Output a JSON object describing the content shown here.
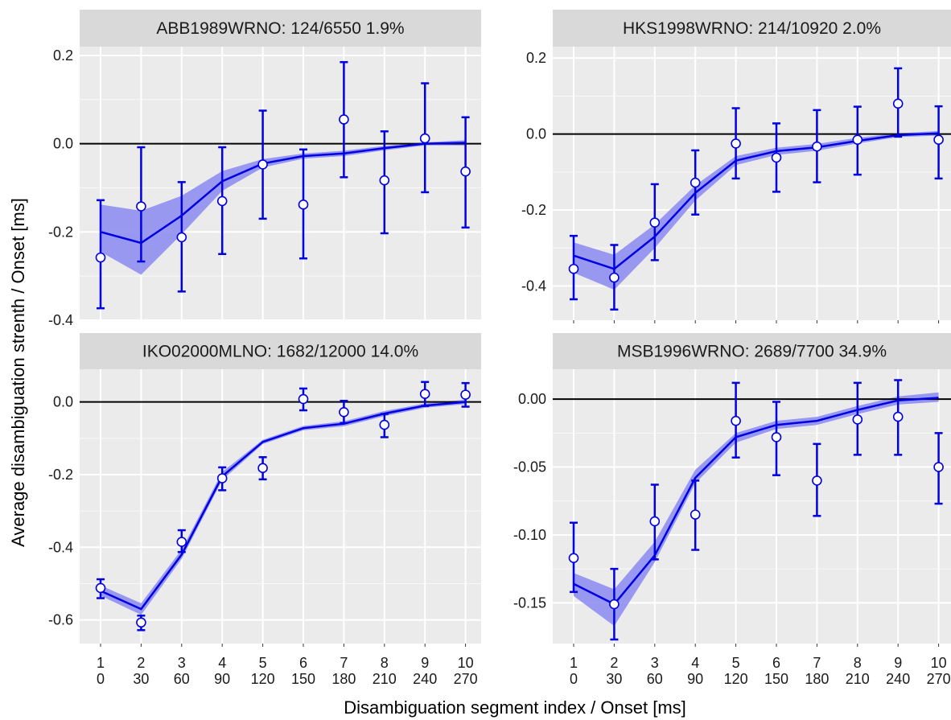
{
  "xlabel": "Disambiguation segment index / Onset [ms]",
  "ylabel": "Average disambiguation strenth / Onset [ms]",
  "colors": {
    "series": "#0000e0",
    "ribbon": "#8f8ff2",
    "panel_bg": "#ebebeb",
    "strip_bg": "#d9d9d9",
    "grid": "#ffffff",
    "zero_line": "#000000",
    "point_fill": "#ffffff"
  },
  "chart_data": [
    {
      "type": "line",
      "title": "ABB1989WRNO: 124/6550 1.9%",
      "x": [
        1,
        2,
        3,
        4,
        5,
        6,
        7,
        8,
        9,
        10
      ],
      "x_index_labels": [
        "1",
        "2",
        "3",
        "4",
        "5",
        "6",
        "7",
        "8",
        "9",
        "10"
      ],
      "x_onset_labels": [
        "0",
        "30",
        "60",
        "90",
        "120",
        "150",
        "180",
        "210",
        "240",
        "270"
      ],
      "ylim": [
        -0.4,
        0.22
      ],
      "yticks": [
        -0.4,
        -0.2,
        0.0,
        0.2
      ],
      "ytick_labels": [
        "-0.4",
        "-0.2",
        "0.0",
        "0.2"
      ],
      "fit_line": [
        -0.2,
        -0.225,
        -0.163,
        -0.085,
        -0.045,
        -0.028,
        -0.022,
        -0.01,
        0.0,
        0.002
      ],
      "ribbon_lower": [
        -0.245,
        -0.297,
        -0.205,
        -0.107,
        -0.054,
        -0.034,
        -0.028,
        -0.015,
        -0.004,
        -0.004
      ],
      "ribbon_upper": [
        -0.138,
        -0.152,
        -0.118,
        -0.062,
        -0.035,
        -0.022,
        -0.016,
        -0.005,
        0.003,
        0.008
      ],
      "observed": [
        -0.258,
        -0.142,
        -0.212,
        -0.13,
        -0.047,
        -0.138,
        0.055,
        -0.083,
        0.012,
        -0.063
      ],
      "error_lower": [
        -0.373,
        -0.267,
        -0.335,
        -0.25,
        -0.17,
        -0.26,
        -0.076,
        -0.203,
        -0.11,
        -0.19
      ],
      "error_upper": [
        -0.128,
        -0.008,
        -0.087,
        -0.008,
        0.075,
        -0.013,
        0.185,
        0.028,
        0.137,
        0.06
      ],
      "show_x_labels": false
    },
    {
      "type": "line",
      "title": "HKS1998WRNO: 214/10920 2.0%",
      "x": [
        1,
        2,
        3,
        4,
        5,
        6,
        7,
        8,
        9,
        10
      ],
      "x_index_labels": [
        "1",
        "2",
        "3",
        "4",
        "5",
        "6",
        "7",
        "8",
        "9",
        "10"
      ],
      "x_onset_labels": [
        "0",
        "30",
        "60",
        "90",
        "120",
        "150",
        "180",
        "210",
        "240",
        "270"
      ],
      "ylim": [
        -0.49,
        0.23
      ],
      "yticks": [
        -0.4,
        -0.2,
        0.0,
        0.2
      ],
      "ytick_labels": [
        "-0.4",
        "-0.2",
        "0.0",
        "0.2"
      ],
      "fit_line": [
        -0.32,
        -0.355,
        -0.27,
        -0.155,
        -0.07,
        -0.045,
        -0.035,
        -0.018,
        -0.003,
        0.002
      ],
      "ribbon_lower": [
        -0.365,
        -0.41,
        -0.3,
        -0.175,
        -0.082,
        -0.055,
        -0.044,
        -0.025,
        -0.008,
        -0.004
      ],
      "ribbon_upper": [
        -0.285,
        -0.318,
        -0.238,
        -0.135,
        -0.058,
        -0.036,
        -0.026,
        -0.01,
        0.002,
        0.008
      ],
      "observed": [
        -0.355,
        -0.378,
        -0.233,
        -0.128,
        -0.025,
        -0.062,
        -0.033,
        -0.015,
        0.08,
        -0.015
      ],
      "error_lower": [
        -0.435,
        -0.462,
        -0.332,
        -0.212,
        -0.117,
        -0.152,
        -0.127,
        -0.107,
        -0.007,
        -0.117
      ],
      "error_upper": [
        -0.268,
        -0.292,
        -0.132,
        -0.043,
        0.068,
        0.028,
        0.063,
        0.072,
        0.173,
        0.073
      ],
      "show_x_labels": true
    },
    {
      "type": "line",
      "title": "IKO02000MLNO: 1682/12000 14.0%",
      "x": [
        1,
        2,
        3,
        4,
        5,
        6,
        7,
        8,
        9,
        10
      ],
      "x_index_labels": [
        "1",
        "2",
        "3",
        "4",
        "5",
        "6",
        "7",
        "8",
        "9",
        "10"
      ],
      "x_onset_labels": [
        "0",
        "30",
        "60",
        "90",
        "120",
        "150",
        "180",
        "210",
        "240",
        "270"
      ],
      "ylim": [
        -0.665,
        0.09
      ],
      "yticks": [
        -0.6,
        -0.4,
        -0.2,
        0.0
      ],
      "ytick_labels": [
        "-0.6",
        "-0.4",
        "-0.2",
        "0.0"
      ],
      "fit_line": [
        -0.52,
        -0.57,
        -0.42,
        -0.205,
        -0.11,
        -0.072,
        -0.06,
        -0.032,
        -0.01,
        0.0
      ],
      "ribbon_lower": [
        -0.533,
        -0.586,
        -0.432,
        -0.215,
        -0.116,
        -0.078,
        -0.067,
        -0.039,
        -0.016,
        -0.006
      ],
      "ribbon_upper": [
        -0.505,
        -0.554,
        -0.406,
        -0.193,
        -0.104,
        -0.066,
        -0.053,
        -0.025,
        -0.004,
        0.006
      ],
      "observed": [
        -0.512,
        -0.607,
        -0.385,
        -0.21,
        -0.182,
        0.008,
        -0.028,
        -0.063,
        0.022,
        0.02
      ],
      "error_lower": [
        -0.54,
        -0.628,
        -0.413,
        -0.243,
        -0.213,
        -0.023,
        -0.058,
        -0.097,
        -0.011,
        -0.013
      ],
      "error_upper": [
        -0.488,
        -0.588,
        -0.353,
        -0.18,
        -0.152,
        0.037,
        0.003,
        -0.033,
        0.055,
        0.052
      ],
      "show_x_labels": true
    },
    {
      "type": "line",
      "title": "MSB1996WRNO: 2689/7700 34.9%",
      "x": [
        1,
        2,
        3,
        4,
        5,
        6,
        7,
        8,
        9,
        10
      ],
      "x_index_labels": [
        "1",
        "2",
        "3",
        "4",
        "5",
        "6",
        "7",
        "8",
        "9",
        "10"
      ],
      "x_onset_labels": [
        "0",
        "30",
        "60",
        "90",
        "120",
        "150",
        "180",
        "210",
        "240",
        "270"
      ],
      "ylim": [
        -0.18,
        0.022
      ],
      "yticks": [
        -0.15,
        -0.1,
        -0.05,
        0.0
      ],
      "ytick_labels": [
        "-0.15",
        "-0.10",
        "-0.05",
        "0.00"
      ],
      "fit_line": [
        -0.136,
        -0.151,
        -0.115,
        -0.058,
        -0.028,
        -0.019,
        -0.016,
        -0.008,
        -0.001,
        0.001
      ],
      "ribbon_lower": [
        -0.145,
        -0.167,
        -0.12,
        -0.062,
        -0.032,
        -0.022,
        -0.019,
        -0.011,
        -0.004,
        -0.002
      ],
      "ribbon_upper": [
        -0.128,
        -0.14,
        -0.105,
        -0.052,
        -0.025,
        -0.016,
        -0.013,
        -0.005,
        0.002,
        0.005
      ],
      "observed": [
        -0.117,
        -0.151,
        -0.09,
        -0.085,
        -0.016,
        -0.028,
        -0.06,
        -0.015,
        -0.013,
        -0.05
      ],
      "error_lower": [
        -0.142,
        -0.177,
        -0.118,
        -0.111,
        -0.043,
        -0.056,
        -0.086,
        -0.041,
        -0.041,
        -0.077
      ],
      "error_upper": [
        -0.091,
        -0.125,
        -0.063,
        -0.06,
        0.012,
        -0.002,
        -0.033,
        0.012,
        0.014,
        -0.025
      ],
      "show_x_labels": true
    }
  ]
}
